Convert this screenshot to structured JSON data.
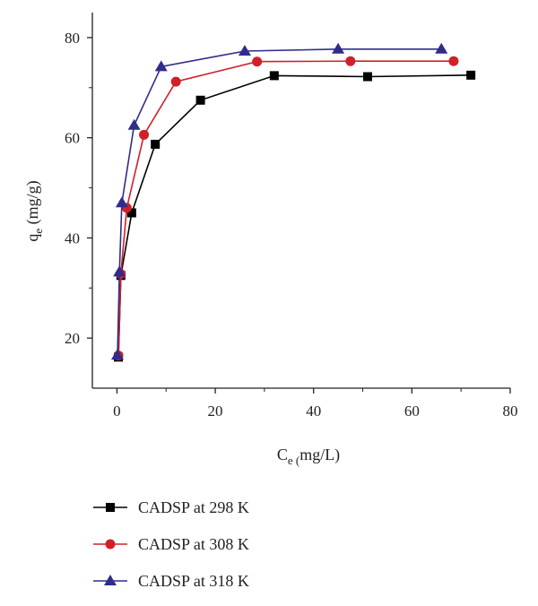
{
  "chart_data": {
    "type": "line",
    "title": "",
    "xlabel": {
      "main": "C",
      "sub": "e (",
      "rest": "mg/L)"
    },
    "ylabel": {
      "main": "q",
      "sub": "e",
      "rest": " (mg/g)"
    },
    "xlim": [
      -5,
      80
    ],
    "ylim": [
      10,
      85
    ],
    "xticks": [
      0,
      20,
      40,
      60,
      80
    ],
    "yticks": [
      20,
      40,
      60,
      80
    ],
    "grid": false,
    "legend_position": "below",
    "series": [
      {
        "name": "CADSP at 298 K",
        "color": "#000000",
        "marker": "square",
        "x": [
          0.3,
          0.8,
          3.0,
          7.8,
          17.0,
          32.0,
          51.0,
          72.0
        ],
        "y": [
          16.2,
          32.5,
          45.0,
          58.7,
          67.5,
          72.4,
          72.2,
          72.5
        ]
      },
      {
        "name": "CADSP at 308 K",
        "color": "#d0202a",
        "marker": "circle",
        "x": [
          0.3,
          0.8,
          2.0,
          5.5,
          12.0,
          28.5,
          47.5,
          68.5
        ],
        "y": [
          16.5,
          32.8,
          46.0,
          60.6,
          71.2,
          75.2,
          75.3,
          75.3
        ]
      },
      {
        "name": "CADSP at 318 K",
        "color": "#302c8c",
        "marker": "triangle",
        "x": [
          0.1,
          0.5,
          1.0,
          3.5,
          9.0,
          26.0,
          45.0,
          66.0
        ],
        "y": [
          16.6,
          33.2,
          47.0,
          62.5,
          74.2,
          77.3,
          77.7,
          77.7
        ]
      }
    ]
  }
}
